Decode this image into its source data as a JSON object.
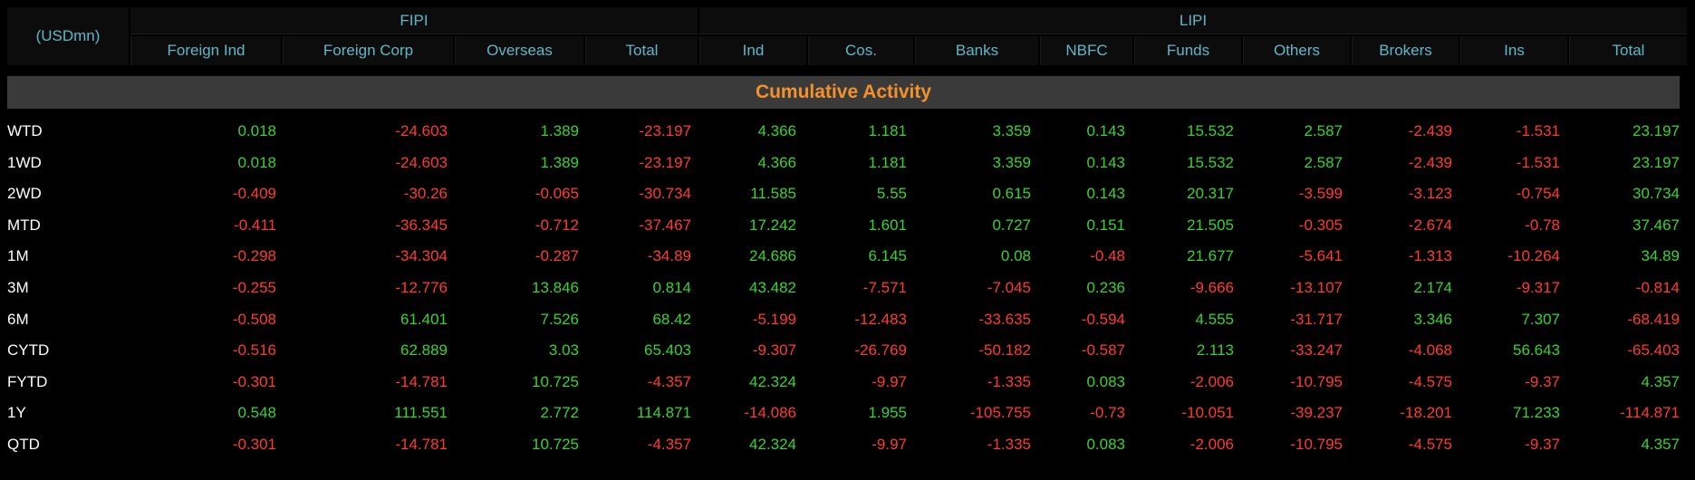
{
  "unit_label": "(USDmn)",
  "groups": {
    "fipi": "FIPI",
    "lipi": "LIPI"
  },
  "columns": [
    "Foreign Ind",
    "Foreign Corp",
    "Overseas",
    "Total",
    "Ind",
    "Cos.",
    "Banks",
    "NBFC",
    "Funds",
    "Others",
    "Brokers",
    "Ins",
    "Total"
  ],
  "banner_title": "Cumulative Activity",
  "colors": {
    "positive": "#39d32f",
    "negative": "#ff3b30",
    "header_text": "#5fb8c8",
    "banner_text": "#f3922b",
    "banner_bg": "#3a3a3a"
  },
  "rows": [
    {
      "label": "WTD",
      "values": [
        "0.018",
        "-24.603",
        "1.389",
        "-23.197",
        "4.366",
        "1.181",
        "3.359",
        "0.143",
        "15.532",
        "2.587",
        "-2.439",
        "-1.531",
        "23.197"
      ]
    },
    {
      "label": "1WD",
      "values": [
        "0.018",
        "-24.603",
        "1.389",
        "-23.197",
        "4.366",
        "1.181",
        "3.359",
        "0.143",
        "15.532",
        "2.587",
        "-2.439",
        "-1.531",
        "23.197"
      ]
    },
    {
      "label": "2WD",
      "values": [
        "-0.409",
        "-30.26",
        "-0.065",
        "-30.734",
        "11.585",
        "5.55",
        "0.615",
        "0.143",
        "20.317",
        "-3.599",
        "-3.123",
        "-0.754",
        "30.734"
      ]
    },
    {
      "label": "MTD",
      "values": [
        "-0.411",
        "-36.345",
        "-0.712",
        "-37.467",
        "17.242",
        "1.601",
        "0.727",
        "0.151",
        "21.505",
        "-0.305",
        "-2.674",
        "-0.78",
        "37.467"
      ]
    },
    {
      "label": "1M",
      "values": [
        "-0.298",
        "-34.304",
        "-0.287",
        "-34.89",
        "24.686",
        "6.145",
        "0.08",
        "-0.48",
        "21.677",
        "-5.641",
        "-1.313",
        "-10.264",
        "34.89"
      ]
    },
    {
      "label": "3M",
      "values": [
        "-0.255",
        "-12.776",
        "13.846",
        "0.814",
        "43.482",
        "-7.571",
        "-7.045",
        "0.236",
        "-9.666",
        "-13.107",
        "2.174",
        "-9.317",
        "-0.814"
      ]
    },
    {
      "label": "6M",
      "values": [
        "-0.508",
        "61.401",
        "7.526",
        "68.42",
        "-5.199",
        "-12.483",
        "-33.635",
        "-0.594",
        "4.555",
        "-31.717",
        "3.346",
        "7.307",
        "-68.419"
      ]
    },
    {
      "label": "CYTD",
      "values": [
        "-0.516",
        "62.889",
        "3.03",
        "65.403",
        "-9.307",
        "-26.769",
        "-50.182",
        "-0.587",
        "2.113",
        "-33.247",
        "-4.068",
        "56.643",
        "-65.403"
      ]
    },
    {
      "label": "FYTD",
      "values": [
        "-0.301",
        "-14.781",
        "10.725",
        "-4.357",
        "42.324",
        "-9.97",
        "-1.335",
        "0.083",
        "-2.006",
        "-10.795",
        "-4.575",
        "-9.37",
        "4.357"
      ]
    },
    {
      "label": "1Y",
      "values": [
        "0.548",
        "111.551",
        "2.772",
        "114.871",
        "-14.086",
        "1.955",
        "-105.755",
        "-0.73",
        "-10.051",
        "-39.237",
        "-18.201",
        "71.233",
        "-114.871"
      ]
    },
    {
      "label": "QTD",
      "values": [
        "-0.301",
        "-14.781",
        "10.725",
        "-4.357",
        "42.324",
        "-9.97",
        "-1.335",
        "0.083",
        "-2.006",
        "-10.795",
        "-4.575",
        "-9.37",
        "4.357"
      ]
    }
  ]
}
